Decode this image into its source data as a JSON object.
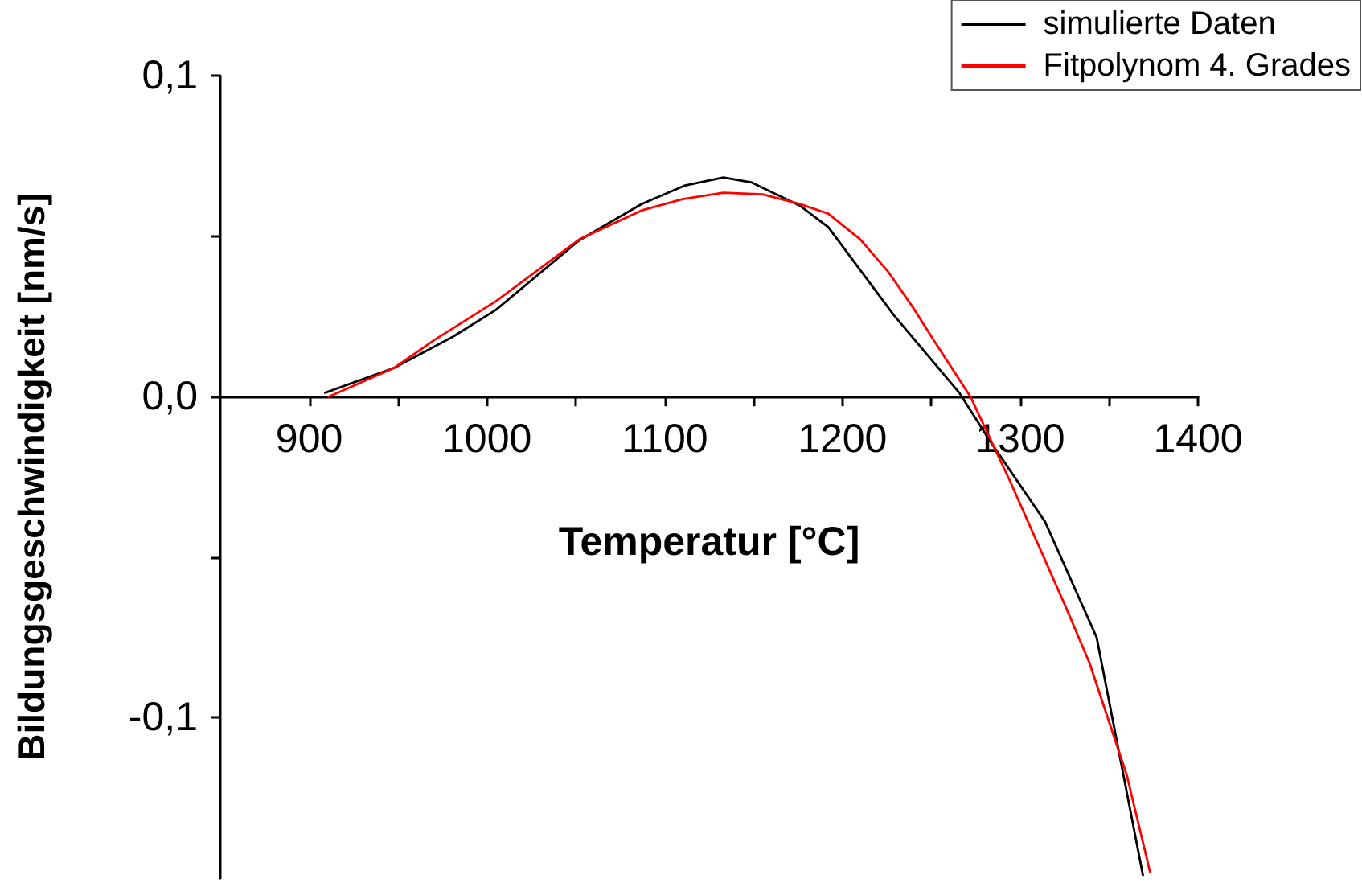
{
  "chart_data": {
    "type": "line",
    "xlabel": "Temperatur [°C]",
    "ylabel": "Bildungsgeschwindigkeit [nm/s]",
    "xlim": [
      850,
      1400
    ],
    "xticks": [
      {
        "value": 900,
        "label": "900"
      },
      {
        "value": 950,
        "label": null
      },
      {
        "value": 1000,
        "label": "1000"
      },
      {
        "value": 1050,
        "label": null
      },
      {
        "value": 1100,
        "label": "1100"
      },
      {
        "value": 1150,
        "label": null
      },
      {
        "value": 1200,
        "label": "1200"
      },
      {
        "value": 1250,
        "label": null
      },
      {
        "value": 1300,
        "label": "1300"
      },
      {
        "value": 1350,
        "label": null
      },
      {
        "value": 1400,
        "label": "1400"
      }
    ],
    "ylim": [
      -0.15,
      0.1
    ],
    "yticks": [
      {
        "value": -0.1,
        "label": "-0,1"
      },
      {
        "value": -0.05,
        "label": null
      },
      {
        "value": 0,
        "label": "0,0"
      },
      {
        "value": 0.05,
        "label": null
      },
      {
        "value": 0.1,
        "label": "0,1"
      }
    ],
    "legend": "top right",
    "marker": "none",
    "line_style": "solid",
    "series": [
      {
        "name": "simulierte Daten",
        "color": "#000000",
        "x": [
          909,
          948,
          981,
          1005,
          1052,
          1087,
          1111,
          1133,
          1149,
          1176,
          1192,
          1229,
          1266,
          1282,
          1314,
          1343,
          1369
        ],
        "values": [
          0.0012,
          0.009,
          0.0187,
          0.027,
          0.0487,
          0.06,
          0.0657,
          0.0683,
          0.0667,
          0.0595,
          0.0528,
          0.0253,
          0.001,
          -0.013,
          -0.039,
          -0.075,
          -0.149
        ]
      },
      {
        "name": "Fitpolynom 4. Grades",
        "color": "#ff0000",
        "x": [
          911,
          948,
          970,
          1005,
          1030,
          1052,
          1087,
          1110,
          1133,
          1155,
          1176,
          1192,
          1210,
          1226,
          1240,
          1252,
          1272,
          1283,
          1294,
          1313,
          1326,
          1339,
          1360,
          1373
        ],
        "values": [
          0,
          0.009,
          0.0175,
          0.0297,
          0.04,
          0.049,
          0.058,
          0.0615,
          0.0635,
          0.063,
          0.06,
          0.057,
          0.049,
          0.0387,
          0.0275,
          0.017,
          0,
          -0.013,
          -0.026,
          -0.0497,
          -0.066,
          -0.083,
          -0.118,
          -0.148
        ]
      }
    ]
  }
}
